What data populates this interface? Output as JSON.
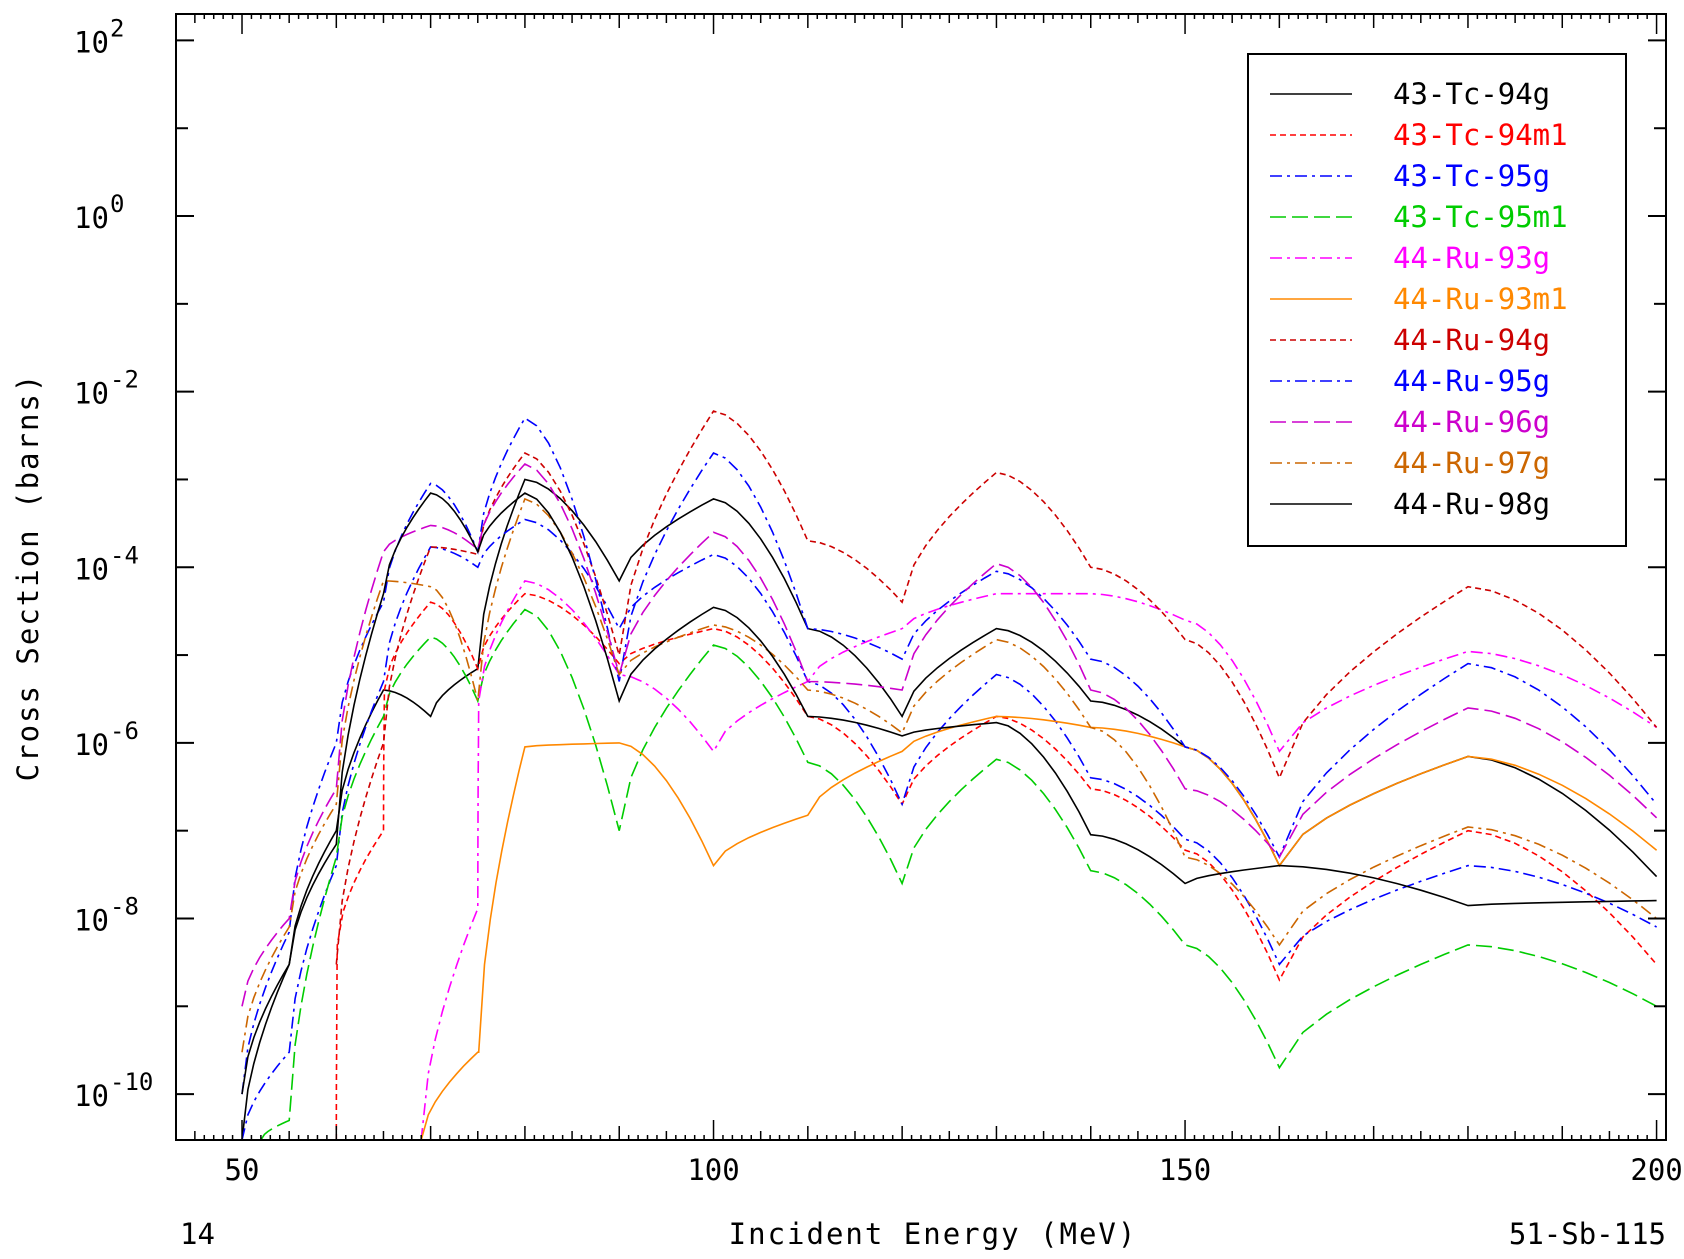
{
  "chart_data": {
    "type": "line",
    "xlabel": "Incident Energy (MeV)",
    "ylabel": "Cross Section (barns)",
    "footer_left": "14",
    "footer_right": "51-Sb-115",
    "x_scale": "linear",
    "y_scale": "log",
    "xlim": [
      43,
      201
    ],
    "ylim": [
      3e-11,
      200
    ],
    "x_ticks": [
      50,
      100,
      150,
      200
    ],
    "y_ticks": [
      {
        "value": 100.0,
        "base": "10",
        "exp": "2"
      },
      {
        "value": 1.0,
        "base": "10",
        "exp": "0"
      },
      {
        "value": 0.01,
        "base": "10",
        "exp": "-2"
      },
      {
        "value": 0.0001,
        "base": "10",
        "exp": "-4"
      },
      {
        "value": 1e-06,
        "base": "10",
        "exp": "-6"
      },
      {
        "value": 1e-08,
        "base": "10",
        "exp": "-8"
      },
      {
        "value": 1e-10,
        "base": "10",
        "exp": "-10"
      }
    ],
    "legend_position": "top-right",
    "grid": false,
    "series": [
      {
        "name": "43-Tc-94g",
        "color": "#000000",
        "dash": "solid",
        "x": [
          50,
          55,
          60,
          65,
          70,
          75,
          80,
          90,
          100,
          110,
          120,
          130,
          140,
          150,
          160,
          180,
          200
        ],
        "y": [
          3e-11,
          3e-09,
          1e-07,
          4e-06,
          2e-06,
          7e-06,
          0.001,
          7e-05,
          0.0006,
          2e-05,
          2e-06,
          2e-05,
          3e-06,
          9e-07,
          4e-08,
          7e-07,
          3e-08
        ]
      },
      {
        "name": "43-Tc-94m1",
        "color": "#ff0000",
        "dash": "6,4",
        "x": [
          60,
          60.1,
          65,
          65.1,
          70,
          75,
          80,
          90,
          100,
          110,
          120,
          130,
          140,
          150,
          160,
          180,
          200
        ],
        "y": [
          3e-11,
          5e-09,
          1e-07,
          4e-06,
          4e-05,
          7e-06,
          5e-05,
          8e-06,
          2e-05,
          2e-06,
          2e-07,
          2e-06,
          3e-07,
          6e-08,
          2e-09,
          1e-07,
          3e-09
        ]
      },
      {
        "name": "43-Tc-95g",
        "color": "#0000ff",
        "dash": "12,5,3,5",
        "x": [
          50,
          55,
          60,
          65,
          70,
          75,
          80,
          90,
          100,
          110,
          120,
          130,
          140,
          150,
          160,
          180,
          200
        ],
        "y": [
          3e-11,
          3e-10,
          4e-08,
          5e-06,
          0.00017,
          0.0001,
          0.00035,
          2e-05,
          0.00014,
          5e-06,
          2e-07,
          6e-06,
          4e-07,
          8e-08,
          3e-09,
          4e-08,
          8e-09
        ]
      },
      {
        "name": "43-Tc-95m1",
        "color": "#00cc00",
        "dash": "16,6",
        "x": [
          52,
          55,
          60,
          65,
          70,
          75,
          80,
          90,
          100,
          110,
          120,
          130,
          140,
          150,
          160,
          180,
          200
        ],
        "y": [
          3e-11,
          5e-11,
          5e-08,
          2e-06,
          1.6e-05,
          3e-06,
          3.3e-05,
          1e-07,
          1.3e-05,
          6e-07,
          2.5e-08,
          6.5e-07,
          3.5e-08,
          5e-09,
          2e-10,
          5e-09,
          1e-09
        ]
      },
      {
        "name": "44-Ru-93g",
        "color": "#ff00ff",
        "dash": "12,5,3,5",
        "x": [
          69,
          75,
          75.1,
          80,
          90,
          100,
          110,
          120,
          130,
          140,
          150,
          160,
          180,
          200
        ],
        "y": [
          3e-11,
          1.3e-08,
          3e-06,
          7e-05,
          6e-06,
          8e-07,
          5e-06,
          2e-05,
          5e-05,
          5e-05,
          2.5e-05,
          8e-07,
          1.1e-05,
          1.5e-06
        ]
      },
      {
        "name": "44-Ru-93m1",
        "color": "#ff8800",
        "dash": "solid",
        "x": [
          69,
          75,
          75.1,
          80,
          90,
          100,
          110,
          120,
          130,
          140,
          150,
          160,
          180,
          200
        ],
        "y": [
          3e-11,
          3e-10,
          3e-10,
          9e-07,
          1e-06,
          4e-08,
          1.5e-07,
          8e-07,
          2e-06,
          1.5e-06,
          9e-07,
          4e-08,
          7e-07,
          6e-08
        ]
      },
      {
        "name": "44-Ru-94g",
        "color": "#cc0000",
        "dash": "6,4",
        "x": [
          60,
          65,
          70,
          75,
          80,
          90,
          100,
          110,
          120,
          130,
          140,
          150,
          160,
          180,
          200
        ],
        "y": [
          3e-09,
          1e-06,
          0.00017,
          0.00014,
          0.002,
          1e-05,
          0.006,
          0.0002,
          4e-05,
          0.0012,
          0.0001,
          1.5e-05,
          4e-07,
          6e-05,
          1.5e-06
        ]
      },
      {
        "name": "44-Ru-95g",
        "color": "#0000ff",
        "dash": "12,5,3,5",
        "x": [
          50,
          55,
          60,
          65,
          70,
          75,
          80,
          90,
          100,
          110,
          120,
          130,
          140,
          150,
          160,
          180,
          200
        ],
        "y": [
          1e-10,
          7e-09,
          1e-06,
          4e-05,
          0.0009,
          0.00015,
          0.005,
          5e-06,
          0.002,
          2e-05,
          9e-06,
          9e-05,
          9e-06,
          9e-07,
          5e-08,
          8e-06,
          2e-07
        ]
      },
      {
        "name": "44-Ru-96g",
        "color": "#cc00cc",
        "dash": "16,6",
        "x": [
          50,
          55,
          60,
          65,
          70,
          75,
          80,
          90,
          100,
          110,
          120,
          130,
          140,
          150,
          160,
          180,
          200
        ],
        "y": [
          1e-09,
          1e-08,
          3e-07,
          0.00015,
          0.0003,
          0.00016,
          0.0015,
          6e-06,
          0.00025,
          5e-06,
          4e-06,
          0.00011,
          4e-06,
          3e-07,
          5e-08,
          2.5e-06,
          1.4e-07
        ]
      },
      {
        "name": "44-Ru-97g",
        "color": "#cc6600",
        "dash": "12,5,3,5",
        "x": [
          50,
          55,
          60,
          65,
          70,
          75,
          80,
          90,
          100,
          110,
          120,
          130,
          140,
          150,
          160,
          180,
          200
        ],
        "y": [
          3e-10,
          8e-09,
          2e-07,
          7e-05,
          6e-05,
          3e-06,
          0.0006,
          6e-06,
          2.2e-05,
          4e-06,
          1.3e-06,
          1.5e-05,
          1.5e-06,
          5e-08,
          5e-09,
          1.1e-07,
          1e-08
        ]
      },
      {
        "name": "44-Ru-98g",
        "color": "#000000",
        "dash": "solid",
        "x": [
          50,
          55,
          60,
          65,
          70,
          75,
          80,
          90,
          100,
          110,
          120,
          130,
          140,
          150,
          160,
          180,
          200
        ],
        "y": [
          1e-10,
          3e-09,
          7e-08,
          5e-05,
          0.0007,
          0.00015,
          0.0007,
          3e-06,
          3.5e-05,
          2e-06,
          1.2e-06,
          1.7e-06,
          9e-08,
          2.5e-08,
          4e-08,
          1.4e-08,
          1.6e-08
        ]
      }
    ]
  }
}
